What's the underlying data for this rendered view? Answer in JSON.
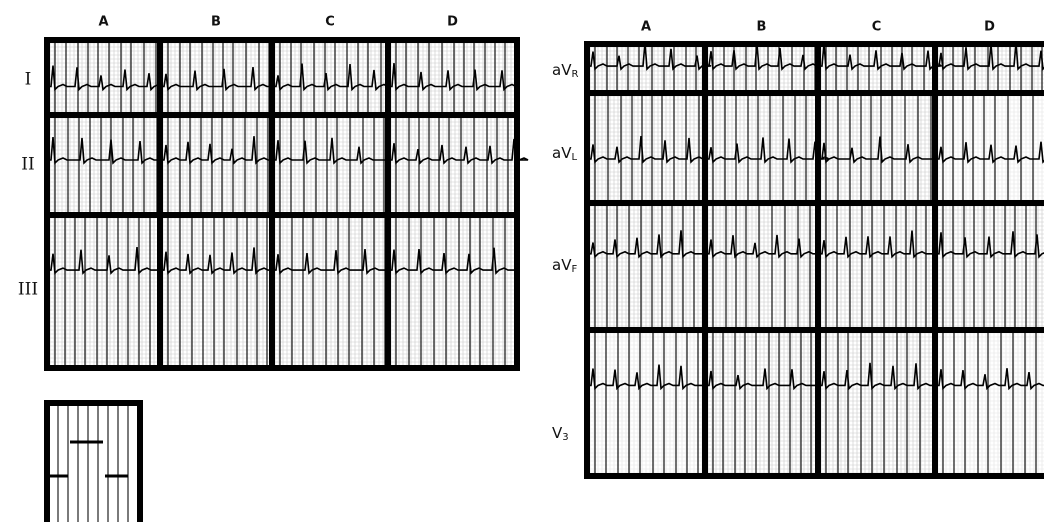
{
  "left_panel": {
    "columns": [
      "A",
      "B",
      "C",
      "D"
    ],
    "rows": [
      "I",
      "II",
      "III"
    ]
  },
  "right_panel": {
    "columns": [
      "A",
      "B",
      "C",
      "D"
    ],
    "rows": [
      {
        "text": "aV",
        "sub": "R"
      },
      {
        "text": "aV",
        "sub": "L"
      },
      {
        "text": "aV",
        "sub": "F"
      },
      {
        "text": "V",
        "sub": "3"
      }
    ]
  }
}
